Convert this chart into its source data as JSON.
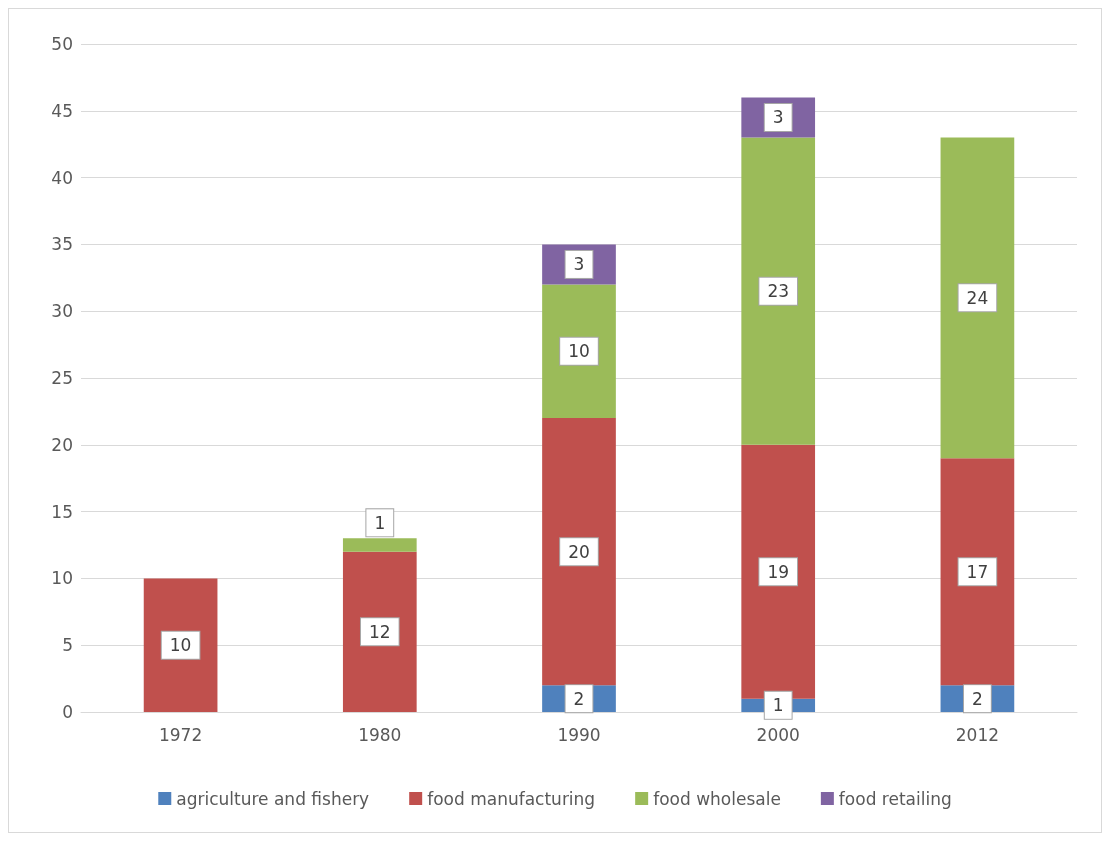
{
  "chart_data": {
    "type": "bar",
    "stacked": true,
    "categories": [
      "1972",
      "1980",
      "1990",
      "2000",
      "2012"
    ],
    "series": [
      {
        "name": "agriculture and fishery",
        "color": "#4f81bd",
        "values": [
          null,
          null,
          2,
          1,
          2
        ]
      },
      {
        "name": "food manufacturing",
        "color": "#c0504d",
        "values": [
          10,
          12,
          20,
          19,
          17
        ]
      },
      {
        "name": "food wholesale",
        "color": "#9bbb59",
        "values": [
          null,
          1,
          10,
          23,
          24
        ]
      },
      {
        "name": "food retailing",
        "color": "#8064a2",
        "values": [
          null,
          null,
          3,
          3,
          null
        ]
      }
    ],
    "ylim": [
      0,
      50
    ],
    "yticks": [
      0,
      5,
      10,
      15,
      20,
      25,
      30,
      35,
      40,
      45,
      50
    ],
    "grid": "y",
    "legend": "bottom",
    "data_labels": true
  }
}
